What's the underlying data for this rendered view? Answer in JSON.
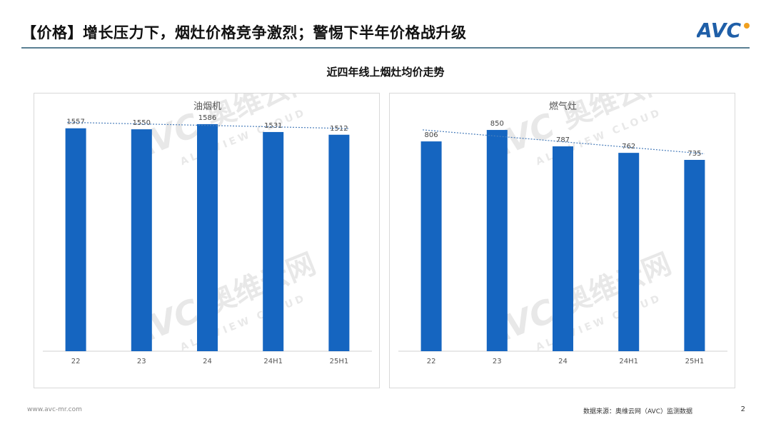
{
  "header": {
    "title": "【价格】增长压力下，烟灶价格竞争激烈；警惕下半年价格战升级",
    "logo_text": "AVC"
  },
  "subtitle": "近四年线上烟灶均价走势",
  "watermark": {
    "logo_text": "AVC",
    "cn_text": "奥维云网",
    "en_text": "ALL VIEW CLOUD"
  },
  "colors": {
    "bar": "#1565c0",
    "trendline": "#4a7ebb",
    "accent_rule": "#5a7f93",
    "logo_blue": "#1f5fa8",
    "logo_orange": "#f0a020"
  },
  "chart_data": [
    {
      "type": "bar",
      "title": "油烟机",
      "categories": [
        "22",
        "23",
        "24",
        "24H1",
        "25H1"
      ],
      "values": [
        1557,
        1550,
        1586,
        1531,
        1512
      ],
      "ylim": [
        0,
        1800
      ],
      "trendline": "linear",
      "grid": false,
      "legend": "none"
    },
    {
      "type": "bar",
      "title": "燃气灶",
      "categories": [
        "22",
        "23",
        "24",
        "24H1",
        "25H1"
      ],
      "values": [
        806,
        850,
        787,
        762,
        735
      ],
      "ylim": [
        0,
        990
      ],
      "trendline": "linear",
      "grid": false,
      "legend": "none"
    }
  ],
  "footer": {
    "website": "www.avc-mr.com",
    "source": "数据来源：奥维云网（AVC）监测数据",
    "page_number": "2"
  }
}
